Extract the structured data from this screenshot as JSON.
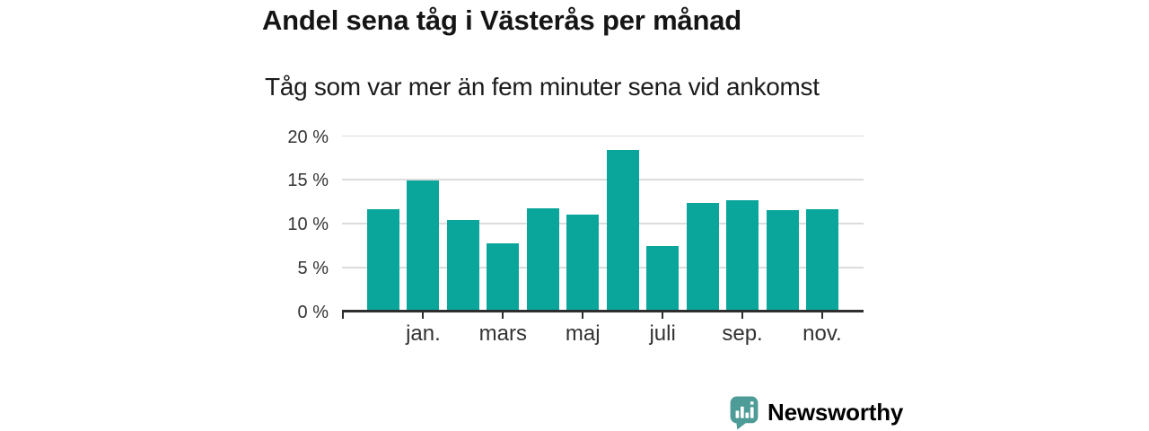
{
  "chart_data": {
    "type": "bar",
    "title": "Andel sena tåg i Västerås per månad",
    "subtitle": "Tåg som var mer än fem minuter sena vid ankomst",
    "unit": "%",
    "values": [
      11.6,
      14.8,
      10.3,
      7.7,
      11.7,
      11.0,
      18.3,
      7.4,
      12.3,
      12.6,
      11.5,
      11.6
    ],
    "x_ticks": [
      {
        "index": 1,
        "label": "jan."
      },
      {
        "index": 3,
        "label": "mars"
      },
      {
        "index": 5,
        "label": "maj"
      },
      {
        "index": 7,
        "label": "juli"
      },
      {
        "index": 9,
        "label": "sep."
      },
      {
        "index": 11,
        "label": "nov."
      }
    ],
    "y_ticks": [
      {
        "value": 0,
        "label": "0 %"
      },
      {
        "value": 5,
        "label": "5 %"
      },
      {
        "value": 10,
        "label": "10 %"
      },
      {
        "value": 15,
        "label": "15 %"
      },
      {
        "value": 20,
        "label": "20 %"
      }
    ],
    "ylim": [
      0,
      20
    ],
    "grid": true,
    "legend": "none",
    "bar_color": "#0aa69c"
  },
  "footer": {
    "brand_name": "Newsworthy"
  },
  "colors": {
    "bar": "#0aa69c",
    "axis": "#2e2e2e",
    "gridline": "#dcdcdc",
    "tick_label": "#333333",
    "title": "#151515",
    "subtitle": "#1c1c1c",
    "brand": "#4a9b96",
    "background": "#ffffff"
  }
}
